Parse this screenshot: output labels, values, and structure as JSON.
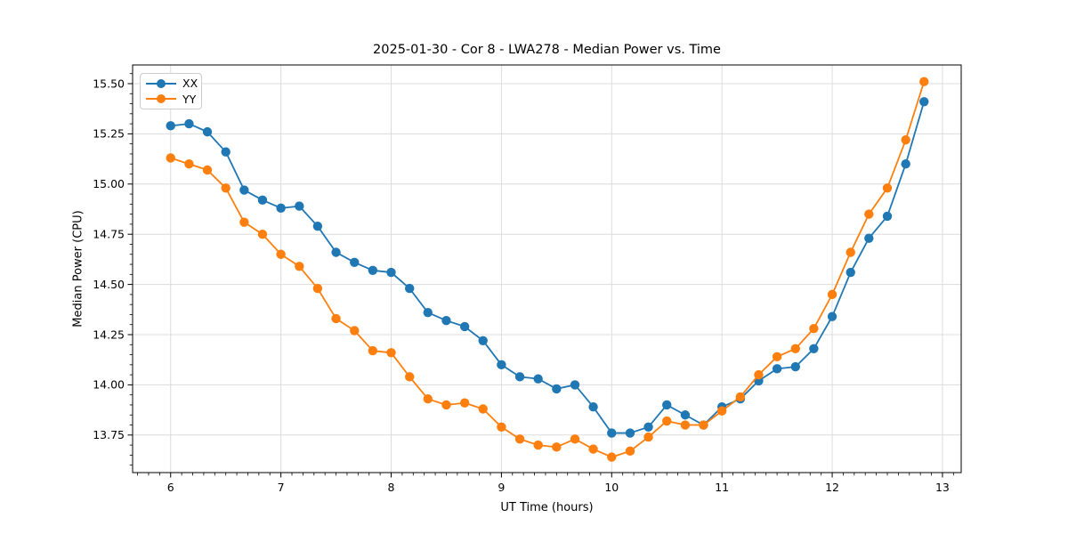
{
  "chart_data": {
    "type": "line",
    "title": "2025-01-30 - Cor 8 - LWA278 - Median Power vs. Time",
    "xlabel": "UT Time (hours)",
    "ylabel": "Median Power (CPU)",
    "grid": true,
    "legend_position": "upper left",
    "marker": "o",
    "xlim": [
      5.655,
      13.17
    ],
    "ylim": [
      13.563,
      15.593
    ],
    "x_ticks": [
      6,
      7,
      8,
      9,
      10,
      11,
      12,
      13
    ],
    "y_ticks": [
      13.75,
      14.0,
      14.25,
      14.5,
      14.75,
      15.0,
      15.25,
      15.5
    ],
    "x_minor_step": 0.1,
    "y_minor_step": 0.05,
    "x": [
      6.0,
      6.167,
      6.333,
      6.5,
      6.667,
      6.833,
      7.0,
      7.167,
      7.333,
      7.5,
      7.667,
      7.833,
      8.0,
      8.167,
      8.333,
      8.5,
      8.667,
      8.833,
      9.0,
      9.167,
      9.333,
      9.5,
      9.667,
      9.833,
      10.0,
      10.167,
      10.333,
      10.5,
      10.667,
      10.833,
      11.0,
      11.167,
      11.333,
      11.5,
      11.667,
      11.833,
      12.0,
      12.167,
      12.333,
      12.5,
      12.667,
      12.833
    ],
    "series": [
      {
        "name": "XX",
        "color": "#1f77b4",
        "values": [
          15.29,
          15.3,
          15.26,
          15.16,
          14.97,
          14.92,
          14.88,
          14.89,
          14.79,
          14.66,
          14.61,
          14.57,
          14.56,
          14.48,
          14.36,
          14.32,
          14.29,
          14.22,
          14.1,
          14.04,
          14.03,
          13.98,
          14.0,
          13.89,
          13.76,
          13.76,
          13.79,
          13.9,
          13.85,
          13.8,
          13.89,
          13.93,
          14.02,
          14.08,
          14.09,
          14.18,
          14.34,
          14.56,
          14.73,
          14.84,
          15.1,
          15.41
        ]
      },
      {
        "name": "YY",
        "color": "#ff7f0e",
        "values": [
          15.13,
          15.1,
          15.07,
          14.98,
          14.81,
          14.75,
          14.65,
          14.59,
          14.48,
          14.33,
          14.27,
          14.17,
          14.16,
          14.04,
          13.93,
          13.9,
          13.91,
          13.88,
          13.79,
          13.73,
          13.7,
          13.69,
          13.73,
          13.68,
          13.64,
          13.67,
          13.74,
          13.82,
          13.8,
          13.8,
          13.87,
          13.94,
          14.05,
          14.14,
          14.18,
          14.28,
          14.45,
          14.66,
          14.85,
          14.98,
          15.22,
          15.51
        ]
      }
    ]
  }
}
